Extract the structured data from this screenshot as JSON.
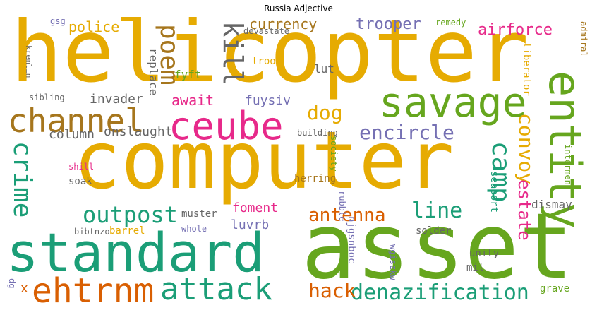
{
  "title": "Russia Adjective",
  "colors": {
    "gold": "#e6ab02",
    "green": "#66a61e",
    "teal": "#1b9e77",
    "orange": "#d95f02",
    "magenta": "#e7298a",
    "purple": "#7570b3",
    "brown": "#a6761d",
    "grey": "#666666"
  },
  "words": [
    {
      "text": "helicopter",
      "color": "gold"
    },
    {
      "text": "computer",
      "color": "gold"
    },
    {
      "text": "asset",
      "color": "green"
    },
    {
      "text": "standard",
      "color": "teal"
    },
    {
      "text": "savage",
      "color": "green"
    },
    {
      "text": "ceube",
      "color": "magenta"
    },
    {
      "text": "channel",
      "color": "brown"
    },
    {
      "text": "entity",
      "color": "green"
    },
    {
      "text": "ehtrnm",
      "color": "orange"
    },
    {
      "text": "attack",
      "color": "teal"
    },
    {
      "text": "denazification",
      "color": "teal"
    },
    {
      "text": "crime",
      "color": "teal"
    },
    {
      "text": "outpost",
      "color": "teal"
    },
    {
      "text": "encircle",
      "color": "purple"
    },
    {
      "text": "camp",
      "color": "teal"
    },
    {
      "text": "dog",
      "color": "gold"
    },
    {
      "text": "antenna",
      "color": "orange"
    },
    {
      "text": "line",
      "color": "teal"
    },
    {
      "text": "hack",
      "color": "orange"
    },
    {
      "text": "poem",
      "color": "brown"
    },
    {
      "text": "kill",
      "color": "grey"
    },
    {
      "text": "convoy",
      "color": "gold"
    },
    {
      "text": "estate",
      "color": "magenta"
    },
    {
      "text": "trooper",
      "color": "purple"
    },
    {
      "text": "airforce",
      "color": "magenta"
    },
    {
      "text": "currency",
      "color": "brown"
    },
    {
      "text": "police",
      "color": "gold"
    },
    {
      "text": "await",
      "color": "magenta"
    },
    {
      "text": "fuysiv",
      "color": "purple"
    },
    {
      "text": "foment",
      "color": "magenta"
    },
    {
      "text": "luvrb",
      "color": "purple"
    },
    {
      "text": "dismay",
      "color": "grey"
    },
    {
      "text": "invader",
      "color": "grey"
    },
    {
      "text": "onslaught",
      "color": "grey"
    },
    {
      "text": "column",
      "color": "grey"
    },
    {
      "text": "replace",
      "color": "grey"
    },
    {
      "text": "fyft",
      "color": "green"
    },
    {
      "text": "troop",
      "color": "gold"
    },
    {
      "text": "lut",
      "color": "grey"
    },
    {
      "text": "devastate",
      "color": "grey"
    },
    {
      "text": "remedy",
      "color": "green"
    },
    {
      "text": "liberator",
      "color": "gold"
    },
    {
      "text": "admiral",
      "color": "brown"
    },
    {
      "text": "building",
      "color": "grey"
    },
    {
      "text": "society",
      "color": "green"
    },
    {
      "text": "herring",
      "color": "brown"
    },
    {
      "text": "rubble",
      "color": "purple"
    },
    {
      "text": "seaport",
      "color": "teal"
    },
    {
      "text": "interment",
      "color": "green"
    },
    {
      "text": "muster",
      "color": "grey"
    },
    {
      "text": "whole",
      "color": "purple"
    },
    {
      "text": "bibtnzo",
      "color": "grey"
    },
    {
      "text": "barrel",
      "color": "gold"
    },
    {
      "text": "solder",
      "color": "grey"
    },
    {
      "text": "unity",
      "color": "grey"
    },
    {
      "text": "mil",
      "color": "grey"
    },
    {
      "text": "grave",
      "color": "green"
    },
    {
      "text": "shill",
      "color": "magenta"
    },
    {
      "text": "soak",
      "color": "grey"
    },
    {
      "text": "sibling",
      "color": "grey"
    },
    {
      "text": "kremlin",
      "color": "grey"
    },
    {
      "text": "njgsnboc",
      "color": "purple"
    },
    {
      "text": "wgiszkw",
      "color": "purple"
    },
    {
      "text": "gsg",
      "color": "purple"
    },
    {
      "text": "dg",
      "color": "purple"
    },
    {
      "text": "x",
      "color": "orange"
    }
  ]
}
